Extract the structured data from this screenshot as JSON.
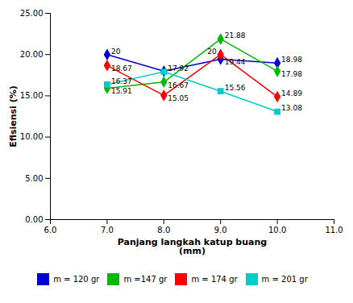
{
  "chart_data": {
    "type": "line",
    "x": [
      7.0,
      8.0,
      9.0,
      10.0
    ],
    "series": [
      {
        "name": "m = 120 gr",
        "color": "#0000CC",
        "marker": "diamond",
        "values": [
          20.0,
          18.0,
          19.44,
          18.98
        ]
      },
      {
        "name": "m =147 gr",
        "color": "#00BB00",
        "marker": "diamond",
        "values": [
          15.91,
          16.67,
          21.88,
          17.98
        ]
      },
      {
        "name": "m = 174 gr",
        "color": "#FF0000",
        "marker": "diamond",
        "values": [
          18.67,
          15.05,
          20.0,
          14.89
        ]
      },
      {
        "name": "m = 201 gr",
        "color": "#00CCCC",
        "marker": "square",
        "values": [
          16.37,
          17.92,
          15.56,
          13.08
        ]
      }
    ],
    "annotations": [
      {
        "x": 7.0,
        "y": 20.0,
        "text": "20"
      },
      {
        "x": 7.0,
        "y": 18.67,
        "text": "18.67"
      },
      {
        "x": 7.0,
        "y": 16.37,
        "text": "16.37"
      },
      {
        "x": 7.0,
        "y": 15.91,
        "text": "15.91"
      },
      {
        "x": 8.0,
        "y": 17.92,
        "text": "17.92"
      },
      {
        "x": 8.0,
        "y": 16.67,
        "text": "16.67"
      },
      {
        "x": 8.0,
        "y": 15.05,
        "text": "15.05"
      },
      {
        "x": 9.0,
        "y": 21.88,
        "text": "21.88"
      },
      {
        "x": 9.0,
        "y": 20.0,
        "text": "20"
      },
      {
        "x": 9.0,
        "y": 19.44,
        "text": "19.44"
      },
      {
        "x": 9.0,
        "y": 15.56,
        "text": "15.56"
      },
      {
        "x": 10.0,
        "y": 18.98,
        "text": "18.98"
      },
      {
        "x": 10.0,
        "y": 17.98,
        "text": "17.98"
      },
      {
        "x": 10.0,
        "y": 14.89,
        "text": "14.89"
      },
      {
        "x": 10.0,
        "y": 13.08,
        "text": "13.08"
      }
    ],
    "xlabel": "Panjang langkah katup buang\n(mm)",
    "ylabel": "Efisiensi (%)",
    "xlim": [
      6.0,
      11.0
    ],
    "ylim": [
      0.0,
      25.0
    ],
    "xticks": [
      {
        "value": 6.0,
        "label": "6.0"
      },
      {
        "value": 7.0,
        "label": "7.0"
      },
      {
        "value": 8.0,
        "label": "8.0"
      },
      {
        "value": 9.0,
        "label": "9.0"
      },
      {
        "value": 10.0,
        "label": "10.0"
      },
      {
        "value": 11.0,
        "label": "11.0"
      }
    ],
    "yticks": [
      {
        "value": 0.0,
        "label": "0.00"
      },
      {
        "value": 5.0,
        "label": "5.00"
      },
      {
        "value": 10.0,
        "label": "10.00"
      },
      {
        "value": 15.0,
        "label": "15.00"
      },
      {
        "value": 20.0,
        "label": "20.00"
      },
      {
        "value": 25.0,
        "label": "25.00"
      }
    ],
    "grid": false,
    "legend": "bottom"
  }
}
